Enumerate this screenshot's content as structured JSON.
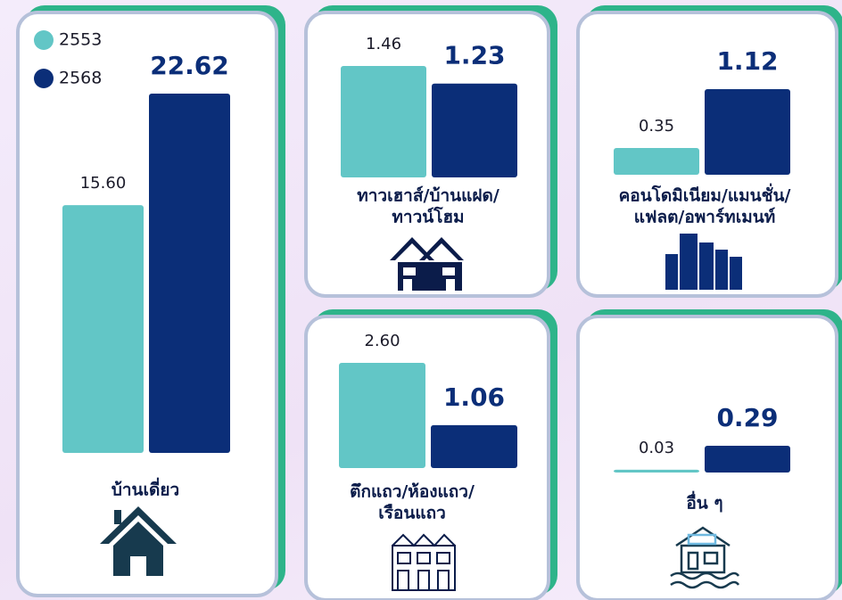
{
  "legend": {
    "items": [
      {
        "name": "2553",
        "color": "#62c6c6"
      },
      {
        "name": "2568",
        "color": "#0b2e78"
      }
    ]
  },
  "chart_data": [
    {
      "type": "bar",
      "title": [
        "บ้านเดี่ยว"
      ],
      "values": [
        15.6,
        22.62
      ],
      "value_labels": [
        "15.60",
        "22.62"
      ]
    },
    {
      "type": "bar",
      "title": [
        "ทาวเฮาส์/บ้านแฝด/",
        "ทาวน์โฮม"
      ],
      "values": [
        1.46,
        1.23
      ],
      "value_labels": [
        "1.46",
        "1.23"
      ]
    },
    {
      "type": "bar",
      "title": [
        "คอนโดมิเนียม/แมนชั่น/",
        "แฟลต/อพาร์ทเมนท์"
      ],
      "values": [
        0.35,
        1.12
      ],
      "value_labels": [
        "0.35",
        "1.12"
      ]
    },
    {
      "type": "bar",
      "title": [
        "ตึกแถว/ห้องแถว/",
        "เรือนแถว"
      ],
      "values": [
        2.6,
        1.06
      ],
      "value_labels": [
        "2.60",
        "1.06"
      ]
    },
    {
      "type": "bar",
      "title": [
        "อื่น ๆ"
      ],
      "values": [
        0.03,
        0.29
      ],
      "value_labels": [
        "0.03",
        "0.29"
      ]
    }
  ]
}
